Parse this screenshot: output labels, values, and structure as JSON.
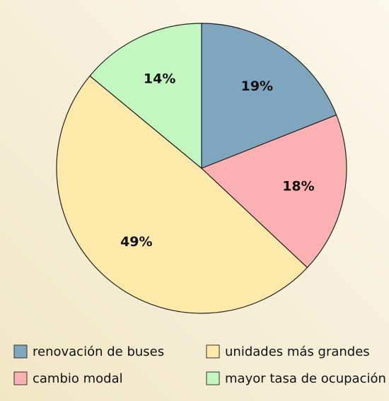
{
  "chart_data": {
    "type": "pie",
    "categories": [
      "renovación de buses",
      "cambio modal",
      "unidades más grandes",
      "mayor tasa de ocupación"
    ],
    "values": [
      19,
      18,
      49,
      14
    ],
    "value_labels": [
      "19%",
      "18%",
      "49%",
      "14%"
    ],
    "colors": [
      "#7fa6bd",
      "#fbb1b1",
      "#fde9a9",
      "#c3f7c0"
    ]
  }
}
